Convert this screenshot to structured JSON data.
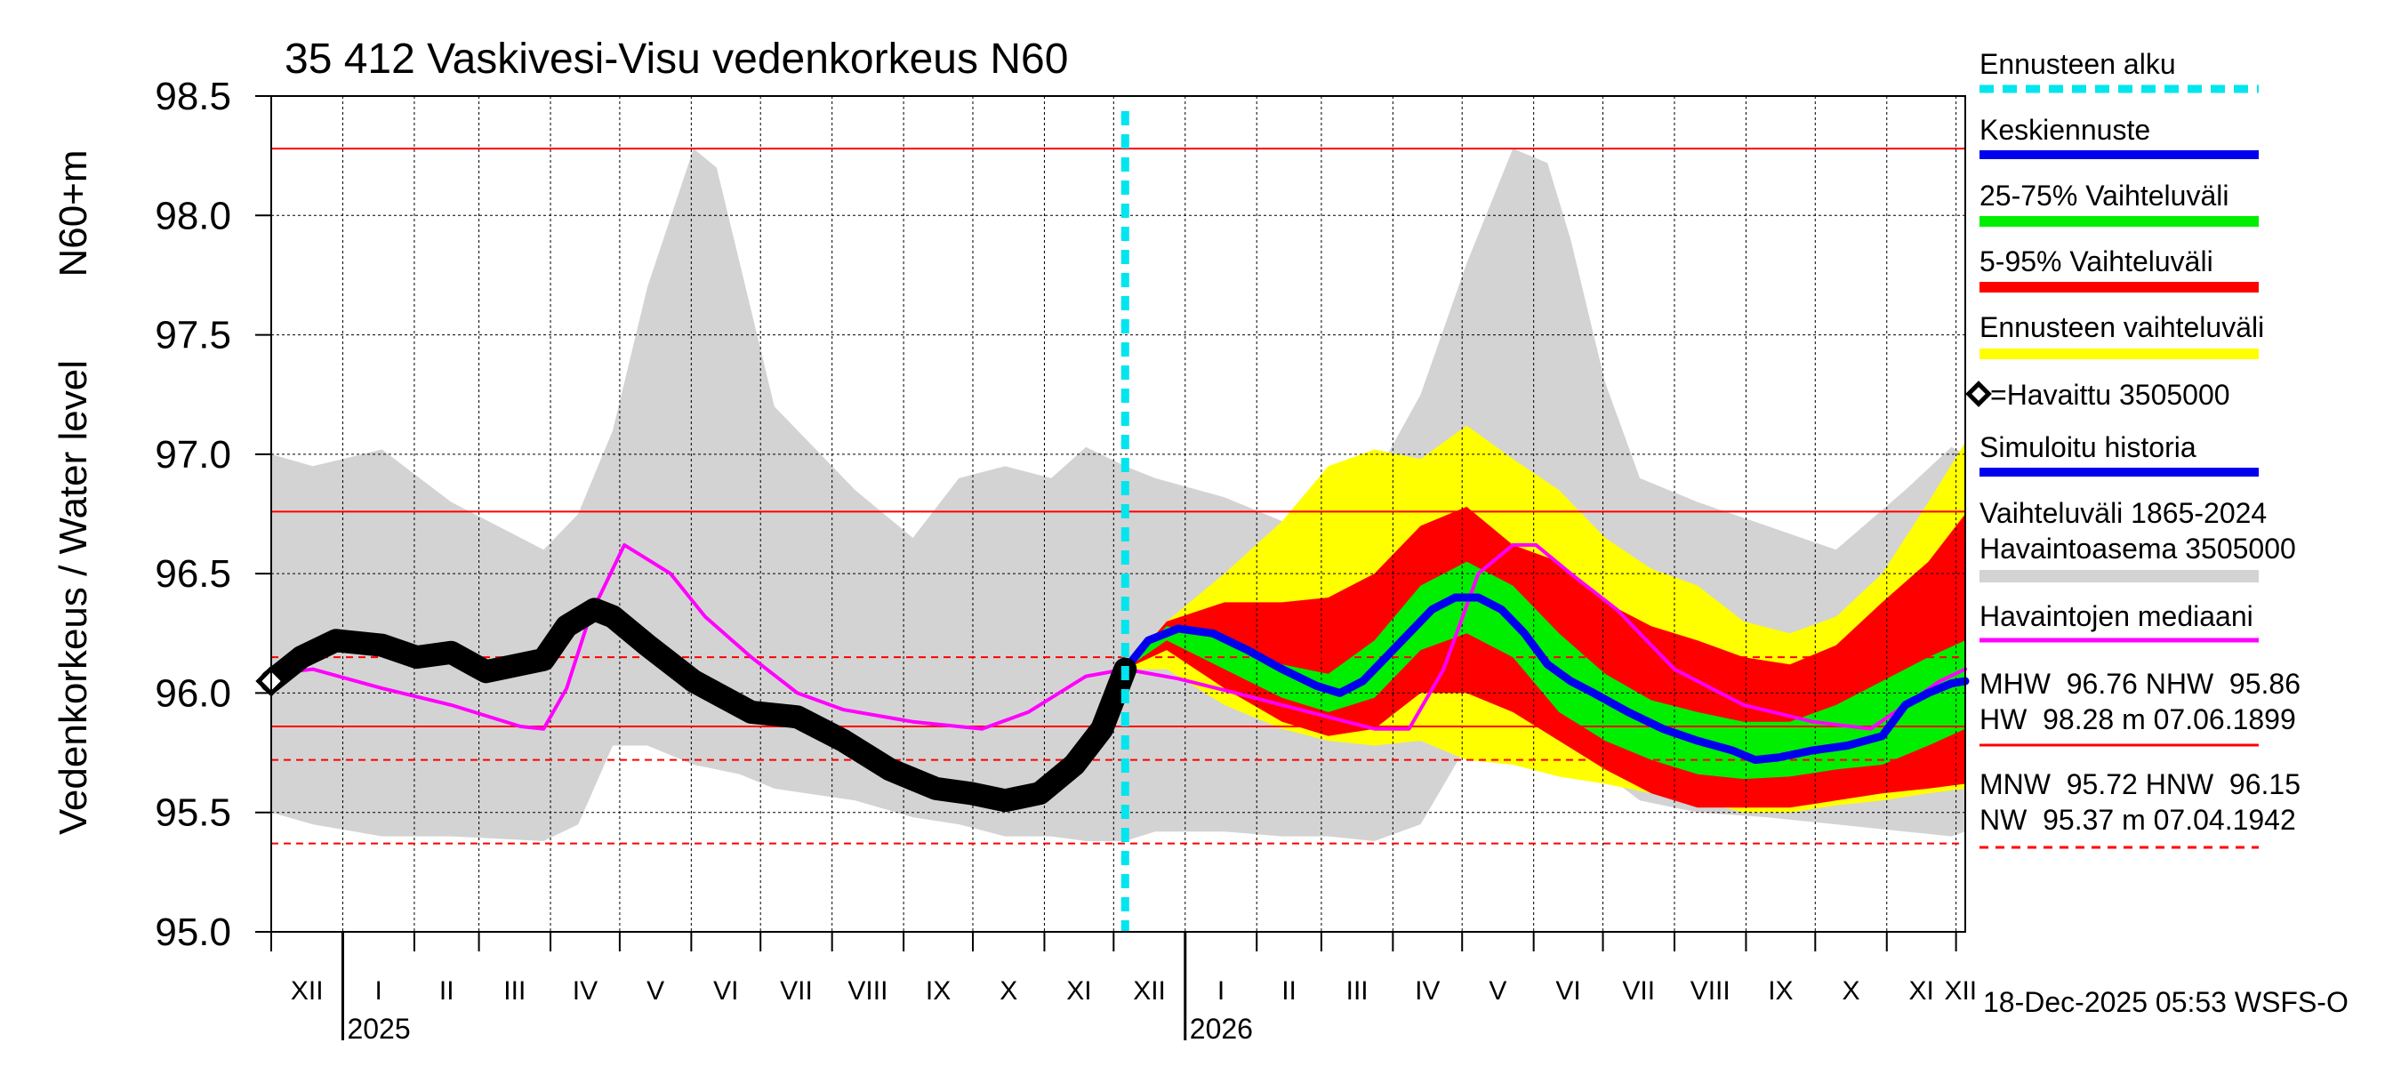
{
  "chart_data": {
    "type": "area",
    "title": "35 412 Vaskivesi-Visu vedenkorkeus N60",
    "ylabel_left": "Vedenkorkeus / Water level",
    "ylabel_right": "N60+m",
    "ylim": [
      95.0,
      98.5
    ],
    "yticks": [
      "95.0",
      "95.5",
      "96.0",
      "96.5",
      "97.0",
      "97.5",
      "98.0",
      "98.5"
    ],
    "x_start_day": -18,
    "x_end_day": 716,
    "forecast_start_day": 352,
    "months": [
      {
        "label": "XII",
        "start": -18,
        "end": 13
      },
      {
        "label": "I",
        "start": 13,
        "end": 44
      },
      {
        "label": "II",
        "start": 44,
        "end": 72
      },
      {
        "label": "III",
        "start": 72,
        "end": 103
      },
      {
        "label": "IV",
        "start": 103,
        "end": 133
      },
      {
        "label": "V",
        "start": 133,
        "end": 164
      },
      {
        "label": "VI",
        "start": 164,
        "end": 194
      },
      {
        "label": "VII",
        "start": 194,
        "end": 225
      },
      {
        "label": "VIII",
        "start": 225,
        "end": 256
      },
      {
        "label": "IX",
        "start": 256,
        "end": 286
      },
      {
        "label": "X",
        "start": 286,
        "end": 317
      },
      {
        "label": "XI",
        "start": 317,
        "end": 347
      },
      {
        "label": "XII",
        "start": 347,
        "end": 378
      },
      {
        "label": "I",
        "start": 378,
        "end": 409
      },
      {
        "label": "II",
        "start": 409,
        "end": 437
      },
      {
        "label": "III",
        "start": 437,
        "end": 468
      },
      {
        "label": "IV",
        "start": 468,
        "end": 498
      },
      {
        "label": "V",
        "start": 498,
        "end": 529
      },
      {
        "label": "VI",
        "start": 529,
        "end": 559
      },
      {
        "label": "VII",
        "start": 559,
        "end": 590
      },
      {
        "label": "VIII",
        "start": 590,
        "end": 621
      },
      {
        "label": "IX",
        "start": 621,
        "end": 651
      },
      {
        "label": "X",
        "start": 651,
        "end": 682
      },
      {
        "label": "XI",
        "start": 682,
        "end": 712
      },
      {
        "label": "XII",
        "start": 712,
        "end": 716
      }
    ],
    "years": [
      {
        "label": "2025",
        "day": 13
      },
      {
        "label": "2026",
        "day": 378
      }
    ],
    "hlines": [
      {
        "name": "HW",
        "value": 98.28,
        "style": "solid"
      },
      {
        "name": "MHW",
        "value": 96.76,
        "style": "solid"
      },
      {
        "name": "HNW",
        "value": 96.15,
        "style": "dashed"
      },
      {
        "name": "NHW",
        "value": 95.86,
        "style": "solid"
      },
      {
        "name": "MNW",
        "value": 95.72,
        "style": "dashed"
      },
      {
        "name": "NW",
        "value": 95.37,
        "style": "dashed"
      }
    ],
    "series": [
      {
        "name": "Vaihteluväli 1865-2024 Havaintoasema 3505000",
        "kind": "band",
        "color": "#d3d3d3",
        "x": [
          -18,
          0,
          30,
          60,
          100,
          115,
          130,
          145,
          165,
          175,
          185,
          200,
          235,
          260,
          280,
          300,
          320,
          335,
          352,
          365,
          395,
          420,
          440,
          460,
          480,
          500,
          520,
          535,
          545,
          560,
          575,
          600,
          630,
          660,
          690,
          710,
          716
        ],
        "upper": [
          97.0,
          96.95,
          97.02,
          96.8,
          96.6,
          96.75,
          97.1,
          97.7,
          98.28,
          98.2,
          97.8,
          97.2,
          96.85,
          96.65,
          96.9,
          96.95,
          96.9,
          97.03,
          96.95,
          96.9,
          96.82,
          96.72,
          96.65,
          96.9,
          97.25,
          97.8,
          98.28,
          98.22,
          97.9,
          97.3,
          96.9,
          96.8,
          96.7,
          96.6,
          96.85,
          97.03,
          97.0
        ],
        "lower": [
          95.5,
          95.45,
          95.4,
          95.4,
          95.38,
          95.45,
          95.78,
          95.78,
          95.7,
          95.68,
          95.66,
          95.6,
          95.55,
          95.48,
          95.45,
          95.4,
          95.4,
          95.38,
          95.38,
          95.42,
          95.42,
          95.4,
          95.4,
          95.38,
          95.45,
          95.78,
          95.78,
          95.7,
          95.68,
          95.66,
          95.55,
          95.5,
          95.48,
          95.45,
          95.42,
          95.4,
          95.42
        ]
      },
      {
        "name": "Ennusteen vaihteluväli",
        "kind": "band",
        "color": "#ffff00",
        "x": [
          352,
          370,
          395,
          420,
          440,
          460,
          480,
          500,
          520,
          540,
          560,
          580,
          600,
          620,
          640,
          660,
          680,
          700,
          716
        ],
        "upper": [
          96.1,
          96.3,
          96.5,
          96.72,
          96.95,
          97.02,
          96.98,
          97.12,
          96.98,
          96.85,
          96.65,
          96.52,
          96.45,
          96.3,
          96.25,
          96.32,
          96.5,
          96.8,
          97.05
        ],
        "lower": [
          96.1,
          96.1,
          95.95,
          95.85,
          95.8,
          95.78,
          95.8,
          95.72,
          95.7,
          95.65,
          95.62,
          95.58,
          95.55,
          95.5,
          95.5,
          95.53,
          95.55,
          95.58,
          95.6
        ]
      },
      {
        "name": "5-95% Vaihteluväli",
        "kind": "band",
        "color": "#ff0000",
        "x": [
          352,
          370,
          395,
          420,
          440,
          460,
          480,
          500,
          520,
          540,
          560,
          580,
          600,
          620,
          640,
          660,
          680,
          700,
          716
        ],
        "upper": [
          96.1,
          96.3,
          96.38,
          96.38,
          96.4,
          96.5,
          96.7,
          96.78,
          96.62,
          96.55,
          96.38,
          96.28,
          96.22,
          96.15,
          96.12,
          96.2,
          96.38,
          96.55,
          96.75
        ],
        "lower": [
          96.1,
          96.18,
          96.02,
          95.88,
          95.82,
          95.85,
          96.0,
          96.0,
          95.92,
          95.8,
          95.68,
          95.58,
          95.52,
          95.52,
          95.52,
          95.55,
          95.58,
          95.6,
          95.62
        ]
      },
      {
        "name": "25-75% Vaihteluväli",
        "kind": "band",
        "color": "#00ee00",
        "x": [
          352,
          370,
          395,
          420,
          440,
          460,
          480,
          500,
          520,
          540,
          560,
          580,
          600,
          620,
          640,
          660,
          680,
          700,
          716
        ],
        "upper": [
          96.1,
          96.28,
          96.22,
          96.12,
          96.08,
          96.22,
          96.45,
          96.55,
          96.45,
          96.25,
          96.08,
          95.97,
          95.92,
          95.88,
          95.88,
          95.95,
          96.05,
          96.15,
          96.22
        ],
        "lower": [
          96.1,
          96.22,
          96.1,
          95.98,
          95.92,
          95.98,
          96.18,
          96.25,
          96.15,
          95.92,
          95.8,
          95.72,
          95.66,
          95.64,
          95.65,
          95.68,
          95.7,
          95.78,
          95.85
        ]
      },
      {
        "name": "Havaintojen mediaani",
        "kind": "line",
        "color": "#ff00ff",
        "x": [
          -18,
          0,
          30,
          60,
          90,
          100,
          110,
          120,
          135,
          155,
          170,
          190,
          210,
          230,
          260,
          290,
          310,
          335,
          352,
          375,
          400,
          420,
          440,
          460,
          475,
          490,
          505,
          520,
          530,
          545,
          565,
          590,
          620,
          650,
          675,
          690,
          705,
          716
        ],
        "values": [
          96.08,
          96.1,
          96.02,
          95.95,
          95.86,
          95.85,
          96.02,
          96.32,
          96.62,
          96.5,
          96.32,
          96.15,
          96.0,
          95.93,
          95.88,
          95.85,
          95.92,
          96.07,
          96.1,
          96.06,
          96.0,
          95.95,
          95.9,
          95.85,
          95.85,
          96.1,
          96.5,
          96.62,
          96.62,
          96.5,
          96.35,
          96.1,
          95.95,
          95.88,
          95.85,
          95.95,
          96.05,
          96.1
        ]
      },
      {
        "name": "Keskiennuste",
        "kind": "line",
        "color": "#0000ee",
        "x": [
          352,
          362,
          375,
          390,
          405,
          420,
          435,
          445,
          455,
          465,
          475,
          485,
          495,
          505,
          515,
          525,
          535,
          545,
          555,
          570,
          585,
          600,
          615,
          625,
          635,
          650,
          665,
          680,
          690,
          700,
          710,
          716
        ],
        "values": [
          96.1,
          96.22,
          96.27,
          96.25,
          96.18,
          96.1,
          96.03,
          96.0,
          96.05,
          96.15,
          96.25,
          96.35,
          96.4,
          96.4,
          96.35,
          96.25,
          96.12,
          96.05,
          96.0,
          95.92,
          95.85,
          95.8,
          95.76,
          95.72,
          95.73,
          95.76,
          95.78,
          95.82,
          95.95,
          96.0,
          96.04,
          96.05
        ]
      },
      {
        "name": "Havaittu 3505000",
        "kind": "observed",
        "color": "#000000",
        "x": [
          -18,
          -5,
          10,
          30,
          45,
          60,
          75,
          90,
          100,
          110,
          122,
          130,
          145,
          165,
          190,
          210,
          230,
          250,
          270,
          285,
          300,
          315,
          330,
          342,
          352
        ],
        "values": [
          96.05,
          96.15,
          96.22,
          96.2,
          96.15,
          96.17,
          96.09,
          96.12,
          96.14,
          96.28,
          96.35,
          96.32,
          96.2,
          96.05,
          95.92,
          95.9,
          95.8,
          95.68,
          95.6,
          95.58,
          95.55,
          95.58,
          95.7,
          95.85,
          96.1
        ]
      }
    ],
    "legend": {
      "forecast_start": "Ennusteen alku",
      "mean_forecast": "Keskiennuste",
      "range_25_75": "25-75% Vaihteluväli",
      "range_5_95": "5-95% Vaihteluväli",
      "forecast_range": "Ennusteen vaihteluväli",
      "observed": "=Havaittu 3505000",
      "simulated": "Simuloitu historia",
      "hist_range_line1": "Vaihteluväli 1865-2024",
      "hist_range_line2": "Havaintoasema 3505000",
      "median": "Havaintojen mediaani"
    },
    "stats": {
      "line1": "MHW  96.76 NHW  95.86",
      "line2": "HW  98.28 m 07.06.1899",
      "line3": "MNW  95.72 HNW  96.15",
      "line4": "NW  95.37 m 07.04.1942"
    },
    "timestamp": "18-Dec-2025 05:53 WSFS-O"
  }
}
